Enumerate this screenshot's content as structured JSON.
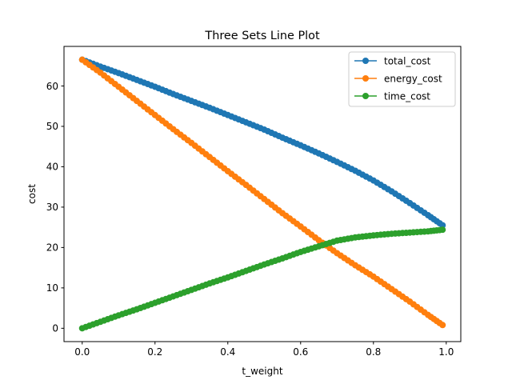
{
  "chart_data": {
    "type": "line",
    "title": "Three Sets Line Plot",
    "xlabel": "t_weight",
    "ylabel": "cost",
    "xlim": [
      -0.05,
      1.04
    ],
    "ylim": [
      -3.3,
      69.8
    ],
    "xticks": [
      0.0,
      0.2,
      0.4,
      0.6,
      0.8,
      1.0
    ],
    "xtick_labels": [
      "0.0",
      "0.2",
      "0.4",
      "0.6",
      "0.8",
      "1.0"
    ],
    "yticks": [
      0,
      10,
      20,
      30,
      40,
      50,
      60
    ],
    "ytick_labels": [
      "0",
      "10",
      "20",
      "30",
      "40",
      "50",
      "60"
    ],
    "grid": false,
    "legend_position": "top-right",
    "marker": "circle",
    "x": [
      0.0,
      0.05,
      0.1,
      0.15,
      0.2,
      0.25,
      0.3,
      0.35,
      0.4,
      0.45,
      0.5,
      0.55,
      0.6,
      0.65,
      0.7,
      0.75,
      0.8,
      0.85,
      0.9,
      0.95,
      0.99
    ],
    "series": [
      {
        "name": "total_cost",
        "color": "#1f77b4",
        "values": [
          66.5,
          64.8,
          63.2,
          61.5,
          59.8,
          58.0,
          56.3,
          54.6,
          52.8,
          51.0,
          49.2,
          47.2,
          45.3,
          43.3,
          41.2,
          39.0,
          36.6,
          33.9,
          31.0,
          28.0,
          25.5
        ]
      },
      {
        "name": "energy_cost",
        "color": "#ff7f0e",
        "values": [
          66.5,
          63.3,
          59.8,
          56.3,
          52.8,
          49.3,
          45.9,
          42.4,
          38.9,
          35.5,
          32.0,
          28.5,
          25.2,
          21.8,
          18.6,
          15.6,
          12.8,
          9.7,
          6.6,
          3.3,
          0.8
        ]
      },
      {
        "name": "time_cost",
        "color": "#2ca02c",
        "values": [
          0.0,
          1.6,
          3.2,
          4.7,
          6.3,
          7.9,
          9.5,
          11.1,
          12.6,
          14.2,
          15.8,
          17.3,
          18.9,
          20.3,
          21.7,
          22.5,
          23.0,
          23.4,
          23.7,
          24.0,
          24.4
        ]
      }
    ]
  }
}
